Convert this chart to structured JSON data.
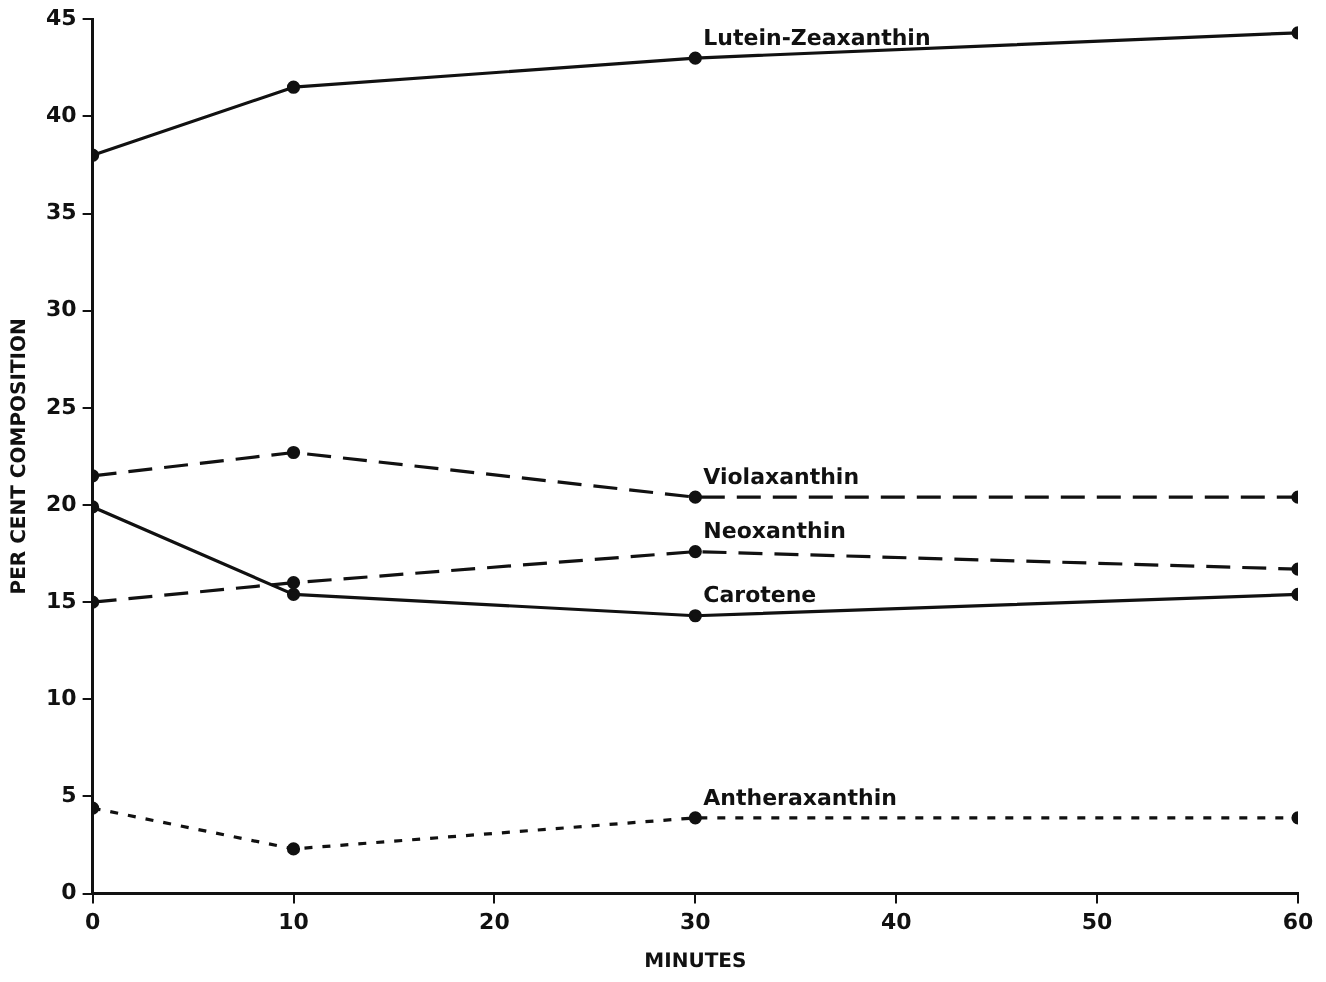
{
  "chart_data": {
    "type": "line",
    "xlabel": "MINUTES",
    "ylabel": "PER CENT COMPOSITION",
    "x": [
      0,
      10,
      30,
      60
    ],
    "series": [
      {
        "name": "Lutein-Zeaxanthin",
        "color": "#111111",
        "line_style": "solid",
        "values": [
          38.0,
          41.5,
          43.0,
          44.3
        ]
      },
      {
        "name": "Violaxanthin",
        "color": "#111111",
        "line_style": "dashed",
        "values": [
          21.5,
          22.7,
          20.4,
          20.4
        ]
      },
      {
        "name": "Neoxanthin",
        "color": "#111111",
        "line_style": "dashed",
        "values": [
          15.0,
          16.0,
          17.6,
          16.7
        ]
      },
      {
        "name": "Carotene",
        "color": "#111111",
        "line_style": "solid",
        "values": [
          19.9,
          15.4,
          14.3,
          15.4
        ]
      },
      {
        "name": "Antheraxanthin",
        "color": "#111111",
        "line_style": "dotted",
        "values": [
          4.4,
          2.3,
          3.9,
          3.9
        ]
      }
    ],
    "xlim": [
      0,
      60
    ],
    "xticks": [
      0,
      10,
      20,
      30,
      40,
      50,
      60
    ],
    "ylim": [
      0,
      45
    ],
    "yticks": [
      0,
      5,
      10,
      15,
      20,
      25,
      30,
      35,
      40,
      45
    ],
    "grid": false,
    "legend": false,
    "marker": "circle"
  }
}
